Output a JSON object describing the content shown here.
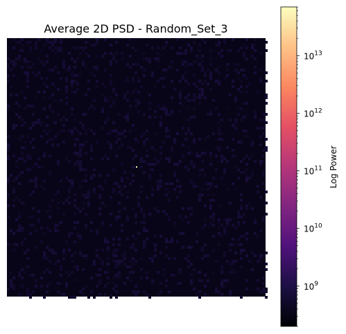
{
  "chart_data": {
    "type": "heatmap",
    "title": "Average 2D PSD - Random_Set_3",
    "colormap": "magma",
    "color_scale": "log",
    "background_power": 330000000.0,
    "peak": {
      "power": 66000000000000.0,
      "location": "center"
    },
    "axes_visible": false,
    "colorbar": {
      "label": "Log Power",
      "range": [
        200000000.0,
        70000000000000.0
      ],
      "ticks": [
        {
          "value": 1000000000.0,
          "base": "10",
          "exp": "9"
        },
        {
          "value": 10000000000.0,
          "base": "10",
          "exp": "10"
        },
        {
          "value": 100000000000.0,
          "base": "10",
          "exp": "11"
        },
        {
          "value": 1000000000000.0,
          "base": "10",
          "exp": "12"
        },
        {
          "value": 10000000000000.0,
          "base": "10",
          "exp": "13"
        }
      ]
    },
    "colors": {
      "magma": [
        "#000004",
        "#1c1044",
        "#4f127b",
        "#812581",
        "#b5367a",
        "#e55064",
        "#fb8761",
        "#fec287",
        "#fcfdbf"
      ]
    }
  }
}
